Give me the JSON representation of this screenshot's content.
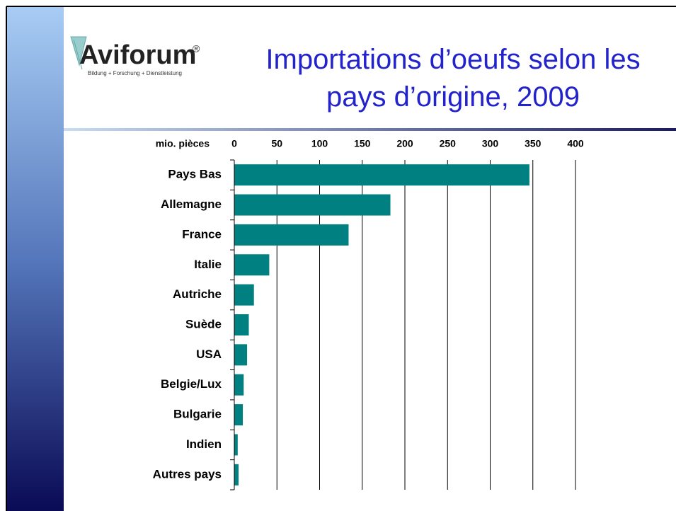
{
  "logo": {
    "name": "Aviforum",
    "mark": "®",
    "tagline": "Bildung + Forschung + Dienstleistung"
  },
  "chart_data": {
    "type": "hbar",
    "title": "Importations d’oeufs selon les pays d’origine, 2009",
    "xlabel": "mio. pièces",
    "categories": [
      "Pays Bas",
      "Allemagne",
      "France",
      "Italie",
      "Autriche",
      "Suède",
      "USA",
      "Belgie/Lux",
      "Bulgarie",
      "Indien",
      "Autres pays"
    ],
    "values": [
      346,
      183,
      134,
      41,
      23,
      17,
      15,
      11,
      10,
      4,
      5
    ],
    "color": "#008080",
    "xlim": [
      0,
      400
    ],
    "xticks": [
      0,
      50,
      100,
      150,
      200,
      250,
      300,
      350,
      400
    ],
    "grid": true
  }
}
